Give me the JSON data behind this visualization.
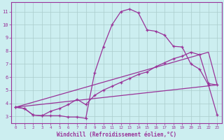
{
  "xlabel": "Windchill (Refroidissement éolien,°C)",
  "background_color": "#cceef0",
  "line_color": "#993399",
  "grid_color": "#aacccc",
  "xlim": [
    -0.5,
    23.5
  ],
  "ylim": [
    2.5,
    11.7
  ],
  "yticks": [
    3,
    4,
    5,
    6,
    7,
    8,
    9,
    10,
    11
  ],
  "xticks": [
    0,
    1,
    2,
    3,
    4,
    5,
    6,
    7,
    8,
    9,
    10,
    11,
    12,
    13,
    14,
    15,
    16,
    17,
    18,
    19,
    20,
    21,
    22,
    23
  ],
  "line1_x": [
    0,
    1,
    2,
    3,
    4,
    5,
    6,
    7,
    8,
    9,
    10,
    11,
    12,
    13,
    14,
    15,
    16,
    17,
    18,
    19,
    20,
    21,
    22,
    23
  ],
  "line1_y": [
    3.7,
    3.6,
    3.1,
    3.05,
    3.05,
    3.05,
    2.95,
    2.95,
    2.85,
    6.3,
    8.3,
    10.0,
    11.0,
    11.2,
    10.9,
    9.6,
    9.5,
    9.2,
    8.35,
    8.3,
    7.0,
    6.6,
    5.4,
    3.1
  ],
  "line2_x": [
    0,
    1,
    2,
    3,
    4,
    5,
    6,
    7,
    8,
    9,
    10,
    11,
    12,
    13,
    14,
    15,
    16,
    17,
    18,
    19,
    20,
    21,
    22,
    23
  ],
  "line2_y": [
    3.7,
    3.6,
    3.1,
    3.05,
    3.4,
    3.6,
    3.9,
    4.3,
    3.9,
    4.6,
    5.0,
    5.3,
    5.6,
    5.9,
    6.2,
    6.4,
    6.8,
    7.1,
    7.4,
    7.6,
    7.9,
    7.7,
    5.5,
    5.4
  ],
  "line3_x": [
    0,
    22,
    23
  ],
  "line3_y": [
    3.7,
    7.9,
    5.4
  ],
  "line4_x": [
    0,
    23
  ],
  "line4_y": [
    3.7,
    5.4
  ]
}
